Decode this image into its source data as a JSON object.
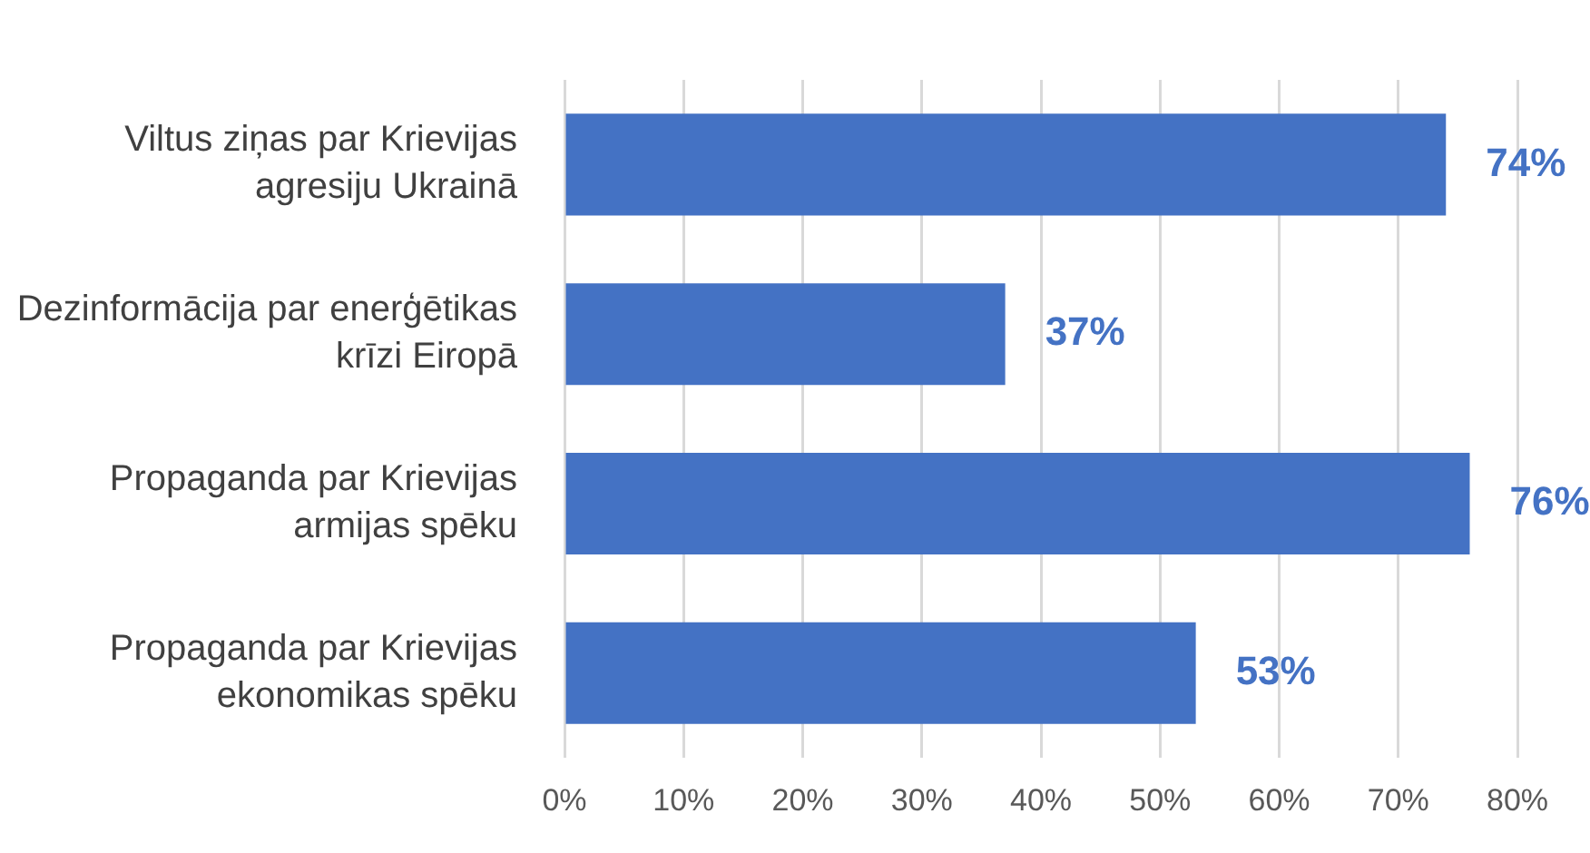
{
  "chart_data": {
    "type": "bar",
    "orientation": "horizontal",
    "categories": [
      "Viltus ziņas par Krievijas agresiju Ukrainā",
      "Dezinformācija par enerģētikas krīzi Eiropā",
      "Propaganda par Krievijas armijas spēku",
      "Propaganda par Krievijas ekonomikas spēku"
    ],
    "values": [
      74,
      37,
      76,
      53
    ],
    "value_labels": [
      "74%",
      "37%",
      "76%",
      "53%"
    ],
    "color": "#4472c4",
    "xlim": [
      0,
      80
    ],
    "xticks": [
      {
        "value": 0,
        "label": "0%"
      },
      {
        "value": 10,
        "label": "10%"
      },
      {
        "value": 20,
        "label": "20%"
      },
      {
        "value": 30,
        "label": "30%"
      },
      {
        "value": 40,
        "label": "40%"
      },
      {
        "value": 50,
        "label": "50%"
      },
      {
        "value": 60,
        "label": "60%"
      },
      {
        "value": 70,
        "label": "70%"
      },
      {
        "value": 80,
        "label": "80%"
      }
    ],
    "grid": "x",
    "legend": false
  }
}
